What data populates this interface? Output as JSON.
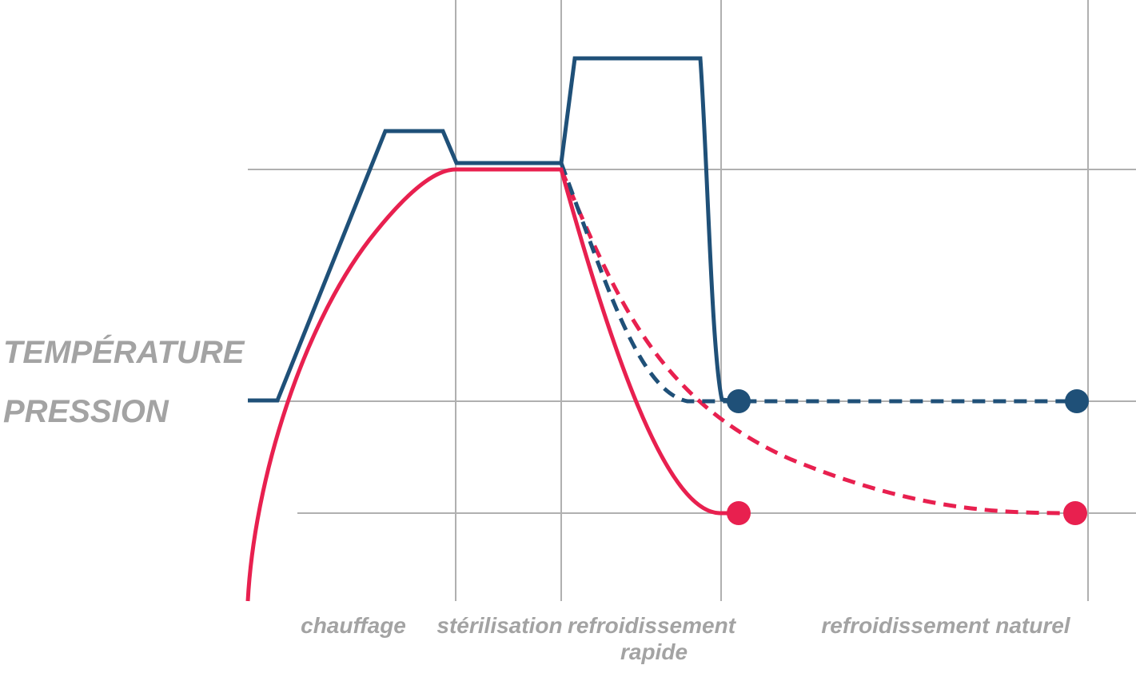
{
  "axis_labels": {
    "temperature": "TEMPÉRATURE",
    "pressure": "PRESSION"
  },
  "phases": [
    {
      "lines": [
        "chauffage"
      ]
    },
    {
      "lines": [
        "stérilisation"
      ]
    },
    {
      "lines": [
        "refroidissement",
        "rapide"
      ]
    },
    {
      "lines": [
        "refroidissement naturel"
      ]
    }
  ]
}
